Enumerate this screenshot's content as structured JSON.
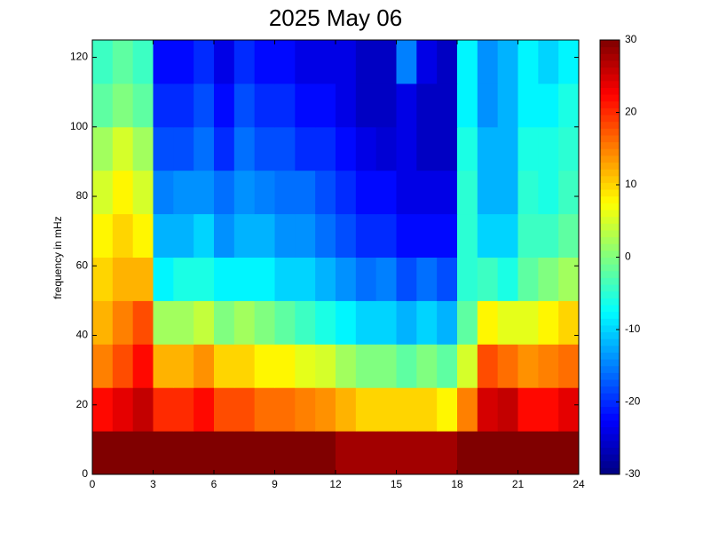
{
  "chart_data": {
    "type": "heatmap",
    "title": "2025 May 06",
    "ylabel": "frequency in mHz",
    "colormap": "jet",
    "xbins": [
      0,
      1,
      2,
      3,
      4,
      5,
      6,
      7,
      8,
      9,
      10,
      11,
      12,
      13,
      14,
      15,
      16,
      17,
      18,
      19,
      20,
      21,
      22,
      23,
      24
    ],
    "ybins": [
      0,
      12.5,
      25,
      37.5,
      50,
      62.5,
      75,
      87.5,
      100,
      112.5,
      125
    ],
    "z": [
      [
        30,
        30,
        30,
        30,
        30,
        30,
        30,
        30,
        30,
        30,
        30,
        30,
        28,
        28,
        28,
        28,
        28,
        28,
        30,
        30,
        30,
        30,
        30,
        30
      ],
      [
        22,
        24,
        26,
        20,
        20,
        22,
        18,
        18,
        16,
        16,
        15,
        14,
        12,
        10,
        10,
        10,
        10,
        8,
        15,
        25,
        26,
        22,
        22,
        24
      ],
      [
        15,
        18,
        22,
        12,
        12,
        14,
        10,
        10,
        8,
        8,
        6,
        5,
        2,
        0,
        0,
        -2,
        0,
        -2,
        5,
        18,
        16,
        14,
        15,
        16
      ],
      [
        12,
        15,
        18,
        2,
        2,
        4,
        0,
        2,
        0,
        -2,
        -4,
        -6,
        -8,
        -10,
        -10,
        -12,
        -10,
        -12,
        -2,
        8,
        6,
        6,
        8,
        10
      ],
      [
        10,
        12,
        12,
        -8,
        -6,
        -6,
        -8,
        -8,
        -8,
        -10,
        -10,
        -12,
        -14,
        -16,
        -15,
        -18,
        -16,
        -18,
        -5,
        -4,
        -6,
        -2,
        0,
        2
      ],
      [
        8,
        10,
        8,
        -12,
        -12,
        -10,
        -14,
        -12,
        -12,
        -14,
        -14,
        -16,
        -18,
        -20,
        -20,
        -22,
        -22,
        -22,
        -5,
        -10,
        -10,
        -4,
        -4,
        -2
      ],
      [
        5,
        8,
        5,
        -15,
        -14,
        -14,
        -16,
        -14,
        -15,
        -16,
        -16,
        -18,
        -20,
        -22,
        -22,
        -24,
        -24,
        -24,
        -5,
        -12,
        -12,
        -5,
        -6,
        -4
      ],
      [
        2,
        5,
        2,
        -18,
        -18,
        -16,
        -20,
        -16,
        -18,
        -18,
        -20,
        -20,
        -22,
        -24,
        -25,
        -24,
        -26,
        -26,
        -6,
        -12,
        -12,
        -6,
        -6,
        -5
      ],
      [
        -2,
        0,
        -2,
        -20,
        -20,
        -18,
        -22,
        -18,
        -20,
        -20,
        -22,
        -22,
        -24,
        -26,
        -26,
        -24,
        -26,
        -26,
        -8,
        -14,
        -12,
        -8,
        -8,
        -6
      ],
      [
        -4,
        -2,
        -4,
        -22,
        -22,
        -20,
        -24,
        -20,
        -22,
        -22,
        -24,
        -24,
        -24,
        -26,
        -26,
        -15,
        -24,
        -26,
        -8,
        -14,
        -12,
        -8,
        -10,
        -8
      ]
    ],
    "xlim": [
      0,
      24
    ],
    "xticks": [
      0,
      3,
      6,
      9,
      12,
      15,
      18,
      21,
      24
    ],
    "ylim": [
      0,
      125
    ],
    "yticks": [
      0,
      20,
      40,
      60,
      80,
      100,
      120
    ],
    "clim": [
      -30,
      30
    ],
    "cticks": [
      -30,
      -20,
      -10,
      0,
      10,
      20,
      30
    ]
  }
}
